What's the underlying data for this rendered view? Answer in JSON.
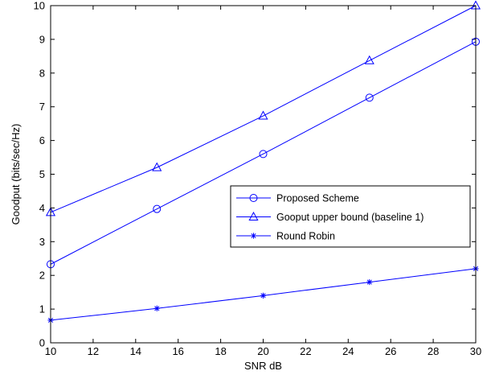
{
  "chart_data": {
    "type": "line",
    "title": "",
    "xlabel": "SNR dB",
    "ylabel": "Goodput (bits/sec/Hz)",
    "xlim": [
      10,
      30
    ],
    "ylim": [
      0,
      10
    ],
    "xticks": [
      10,
      12,
      14,
      16,
      18,
      20,
      22,
      24,
      26,
      28,
      30
    ],
    "yticks": [
      0,
      1,
      2,
      3,
      4,
      5,
      6,
      7,
      8,
      9,
      10
    ],
    "grid": false,
    "legend_position": "center-right",
    "x": [
      10,
      15,
      20,
      25,
      30
    ],
    "series": [
      {
        "name": "Proposed Scheme",
        "marker": "circle",
        "color": "#0000ff",
        "values": [
          2.33,
          3.97,
          5.6,
          7.27,
          8.93
        ]
      },
      {
        "name": "Gooput upper bound (baseline 1)",
        "marker": "triangle",
        "color": "#0000ff",
        "values": [
          3.87,
          5.2,
          6.73,
          8.37,
          10.0
        ]
      },
      {
        "name": "Round Robin",
        "marker": "asterisk",
        "color": "#0000ff",
        "values": [
          0.67,
          1.02,
          1.4,
          1.8,
          2.2
        ]
      }
    ]
  }
}
